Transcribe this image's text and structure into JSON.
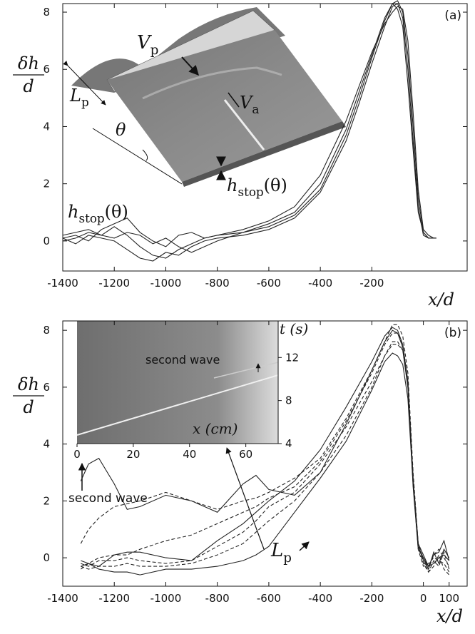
{
  "chart_data": [
    {
      "type": "line",
      "panel_label": "(a)",
      "ylabel": {
        "numerator": "δh",
        "denominator": "d"
      },
      "xlabel": "x/d",
      "xlim": [
        -1400,
        170
      ],
      "ylim": [
        -1.05,
        8.3
      ],
      "xticks": [
        -1400,
        -1200,
        -1000,
        -800,
        -600,
        -400,
        -200
      ],
      "yticks": [
        0,
        2,
        4,
        6,
        8
      ],
      "x": [
        -1400,
        -1350,
        -1300,
        -1250,
        -1200,
        -1150,
        -1100,
        -1050,
        -1000,
        -950,
        -900,
        -850,
        -800,
        -700,
        -600,
        -500,
        -400,
        -300,
        -250,
        -200,
        -150,
        -120,
        -100,
        -80,
        -60,
        -40,
        -20,
        0,
        20,
        40,
        50
      ],
      "series": [
        {
          "color": "#222",
          "values": [
            0.0,
            0.1,
            0.3,
            0.2,
            0.5,
            0.2,
            -0.2,
            -0.5,
            -0.6,
            -0.3,
            -0.1,
            0.1,
            0.2,
            0.3,
            0.5,
            0.9,
            1.8,
            3.7,
            5.0,
            6.4,
            7.7,
            8.3,
            8.4,
            8.0,
            6.5,
            4.0,
            1.5,
            0.3,
            0.1,
            0.1,
            0.1
          ]
        },
        {
          "color": "#222",
          "values": [
            0.1,
            0.2,
            0.0,
            0.4,
            0.6,
            0.8,
            0.3,
            0.0,
            -0.2,
            0.2,
            0.3,
            0.1,
            0.2,
            0.4,
            0.7,
            1.2,
            2.3,
            4.2,
            5.4,
            6.6,
            7.6,
            8.0,
            8.2,
            8.1,
            7.0,
            4.5,
            1.8,
            0.4,
            0.2,
            0.1,
            0.1
          ]
        },
        {
          "color": "#222",
          "values": [
            0.1,
            -0.1,
            0.2,
            0.1,
            0.0,
            -0.3,
            -0.6,
            -0.7,
            -0.4,
            -0.5,
            -0.2,
            0.0,
            0.1,
            0.2,
            0.4,
            0.8,
            1.7,
            3.5,
            4.8,
            6.2,
            7.5,
            8.2,
            8.3,
            7.8,
            6.0,
            3.5,
            1.2,
            0.2,
            0.1,
            0.1,
            0.1
          ]
        },
        {
          "color": "#222",
          "values": [
            0.2,
            0.3,
            0.4,
            0.2,
            0.1,
            0.3,
            0.2,
            -0.1,
            0.1,
            -0.2,
            -0.4,
            -0.2,
            0.0,
            0.3,
            0.6,
            1.0,
            2.0,
            3.9,
            5.2,
            6.5,
            7.8,
            8.3,
            8.1,
            7.5,
            5.5,
            3.2,
            1.0,
            0.3,
            0.1,
            0.1,
            0.1
          ]
        }
      ],
      "annotations": [
        {
          "text": "h",
          "sub": "stop",
          "after": "(θ)"
        }
      ],
      "inset_labels": [
        {
          "text": "V",
          "sub": "p"
        },
        {
          "text": "L",
          "sub": "p"
        },
        {
          "text": "V",
          "sub": "a"
        },
        {
          "text": "θ"
        },
        {
          "text": "h",
          "sub": "stop",
          "after": "(θ)"
        }
      ]
    },
    {
      "type": "line",
      "panel_label": "(b)",
      "ylabel": {
        "numerator": "δh",
        "denominator": "d"
      },
      "xlabel": "x/d",
      "xlim": [
        -1400,
        170
      ],
      "ylim": [
        -1.0,
        8.33
      ],
      "xticks": [
        -1400,
        -1200,
        -1000,
        -800,
        -600,
        -400,
        -200,
        0,
        100
      ],
      "yticks": [
        0,
        2,
        4,
        6,
        8
      ],
      "x": [
        -1330,
        -1300,
        -1260,
        -1200,
        -1150,
        -1100,
        -1000,
        -900,
        -800,
        -700,
        -650,
        -600,
        -500,
        -400,
        -300,
        -200,
        -150,
        -120,
        -100,
        -80,
        -60,
        -40,
        -20,
        0,
        20,
        40,
        60,
        80,
        100
      ],
      "series": [
        {
          "color": "#222",
          "dashed": false,
          "values": [
            2.7,
            3.3,
            3.5,
            2.6,
            1.7,
            1.8,
            2.2,
            2.0,
            1.6,
            2.6,
            2.9,
            2.4,
            2.2,
            3.0,
            4.7,
            6.6,
            7.6,
            8.0,
            7.9,
            7.4,
            6.0,
            2.5,
            0.3,
            0.0,
            -0.4,
            0.2,
            -0.2,
            0.3,
            0.0
          ]
        },
        {
          "color": "#222",
          "dashed": false,
          "values": [
            -0.1,
            -0.2,
            -0.3,
            0.1,
            0.2,
            0.2,
            0.0,
            -0.1,
            0.6,
            1.2,
            1.6,
            2.0,
            2.7,
            3.8,
            5.3,
            6.9,
            7.8,
            8.1,
            8.0,
            7.5,
            6.2,
            2.8,
            0.5,
            0.1,
            -0.3,
            0.1,
            0.2,
            0.6,
            -0.1
          ]
        },
        {
          "color": "#222",
          "dashed": false,
          "values": [
            -0.3,
            -0.2,
            -0.4,
            -0.5,
            -0.5,
            -0.6,
            -0.4,
            -0.4,
            -0.3,
            -0.1,
            0.1,
            0.4,
            1.6,
            2.8,
            4.1,
            5.9,
            6.9,
            7.2,
            7.1,
            6.8,
            5.6,
            2.6,
            0.4,
            0.0,
            -0.3,
            -0.2,
            0.0,
            0.1,
            -0.1
          ]
        },
        {
          "color": "#222",
          "dashed": true,
          "values": [
            0.5,
            1.0,
            1.4,
            1.8,
            1.9,
            2.0,
            2.3,
            2.0,
            1.7,
            2.0,
            2.1,
            2.3,
            2.8,
            3.5,
            4.9,
            6.6,
            7.6,
            8.2,
            8.2,
            7.8,
            6.5,
            3.0,
            0.5,
            -0.1,
            -0.4,
            0.1,
            0.3,
            0.0,
            -0.3
          ]
        },
        {
          "color": "#222",
          "dashed": true,
          "values": [
            -0.4,
            -0.2,
            0.0,
            0.1,
            0.1,
            0.3,
            0.6,
            0.8,
            1.2,
            1.6,
            1.8,
            2.1,
            2.5,
            3.4,
            4.8,
            6.5,
            7.5,
            7.9,
            7.9,
            7.5,
            6.2,
            2.8,
            0.4,
            -0.2,
            -0.5,
            -0.1,
            -0.3,
            0.2,
            -0.4
          ]
        },
        {
          "color": "#222",
          "dashed": true,
          "values": [
            -0.2,
            -0.3,
            -0.1,
            -0.1,
            0.0,
            -0.1,
            -0.2,
            -0.1,
            0.4,
            0.9,
            1.3,
            1.8,
            2.3,
            3.3,
            4.6,
            6.2,
            7.1,
            7.5,
            7.5,
            7.3,
            6.0,
            2.6,
            0.3,
            -0.3,
            -0.2,
            0.0,
            -0.1,
            -0.2,
            -0.5
          ]
        },
        {
          "color": "#222",
          "dashed": true,
          "values": [
            -0.3,
            -0.4,
            -0.3,
            -0.3,
            -0.2,
            -0.3,
            -0.3,
            -0.2,
            0.1,
            0.5,
            0.9,
            1.3,
            2.0,
            3.0,
            4.3,
            6.0,
            7.1,
            7.6,
            7.6,
            7.3,
            6.0,
            2.7,
            0.4,
            -0.1,
            -0.5,
            -0.3,
            0.1,
            -0.4,
            -0.6
          ]
        }
      ],
      "annotations": [
        {
          "text": "second wave"
        },
        {
          "text": "L",
          "sub": "p"
        }
      ],
      "inset": {
        "xlabel": "x (cm)",
        "ylabel": "t (s)",
        "xlim": [
          0,
          71.5
        ],
        "ylim": [
          4,
          15.4
        ],
        "xticks": [
          0,
          20,
          40,
          60
        ],
        "yticks": [
          4,
          8,
          12
        ],
        "annotation": "second wave"
      }
    }
  ]
}
